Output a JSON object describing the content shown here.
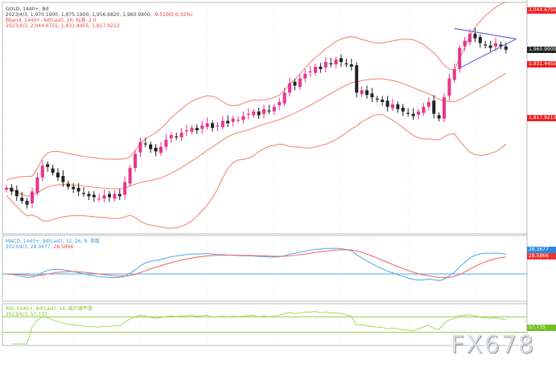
{
  "legend": {
    "line1": "GOLD, 1440+, Bd",
    "line2a": "2023/4/3, 1,970.1900, 1,975.1900, 1,956.6820, 1,960.9900,",
    "line2b": "-9.5100(-0.32%)",
    "line3": "Bband, 1440+, 6d(Last), 20, 标准: 2.0",
    "line4": "2023/4/3, 2,044.6755, 1,931.4455, 1,817.9213",
    "macd1": "MACD, 1440+, 8d(Last), 12, 26, 9, 指数",
    "macd2a": "2023/4/3, 28.3677,",
    "macd2b": "28.5866",
    "rsi1": "RSI, 1440+, 8d(Last), 14, 威尔德平滑",
    "rsi2": "2023/4/3, 57.735"
  },
  "tags": {
    "upper": "2,044.6755",
    "price": "1,960.9900",
    "mid": "1,931.4455",
    "lower": "1,817.9213",
    "macd": "28.3677",
    "signal": "28.5866",
    "rsi": "57.735"
  },
  "watermark": "FX678",
  "colors": {
    "bull": "#e8358a",
    "bear": "#222222",
    "band": "#f08070",
    "macd": "#4aa8e8",
    "signal": "#f06060",
    "rsi": "#90d040",
    "trend": "#6a70d8"
  },
  "chart_data": {
    "type": "candlestick",
    "ylim": [
      1572,
      2058
    ],
    "closes": [
      1668,
      1660,
      1650,
      1640,
      1632,
      1660,
      1690,
      1715,
      1712,
      1700,
      1690,
      1680,
      1670,
      1665,
      1660,
      1655,
      1650,
      1648,
      1645,
      1652,
      1648,
      1655,
      1650,
      1680,
      1710,
      1740,
      1765,
      1760,
      1750,
      1745,
      1755,
      1770,
      1780,
      1775,
      1785,
      1790,
      1795,
      1790,
      1800,
      1805,
      1795,
      1800,
      1810,
      1805,
      1815,
      1812,
      1820,
      1825,
      1830,
      1822,
      1835,
      1830,
      1840,
      1850,
      1870,
      1890,
      1885,
      1900,
      1910,
      1915,
      1925,
      1920,
      1935,
      1930,
      1940,
      1935,
      1930,
      1925,
      1870,
      1875,
      1865,
      1860,
      1855,
      1850,
      1840,
      1845,
      1835,
      1830,
      1825,
      1820,
      1830,
      1840,
      1850,
      1825,
      1815,
      1860,
      1900,
      1920,
      1965,
      1980,
      1995,
      1985,
      1975,
      1970,
      1965,
      1975,
      1968,
      1961
    ],
    "bollinger": {
      "period": 20,
      "deviation": 2
    },
    "macd": {
      "fast": 12,
      "slow": 26,
      "signal": 9
    },
    "rsi": {
      "period": 14,
      "levels": [
        30,
        70
      ]
    },
    "trendlines": [
      {
        "from": [
          87,
          2006
        ],
        "to": [
          99,
          1984
        ]
      },
      {
        "from": [
          88,
          1922
        ],
        "to": [
          99,
          1984
        ]
      }
    ]
  }
}
